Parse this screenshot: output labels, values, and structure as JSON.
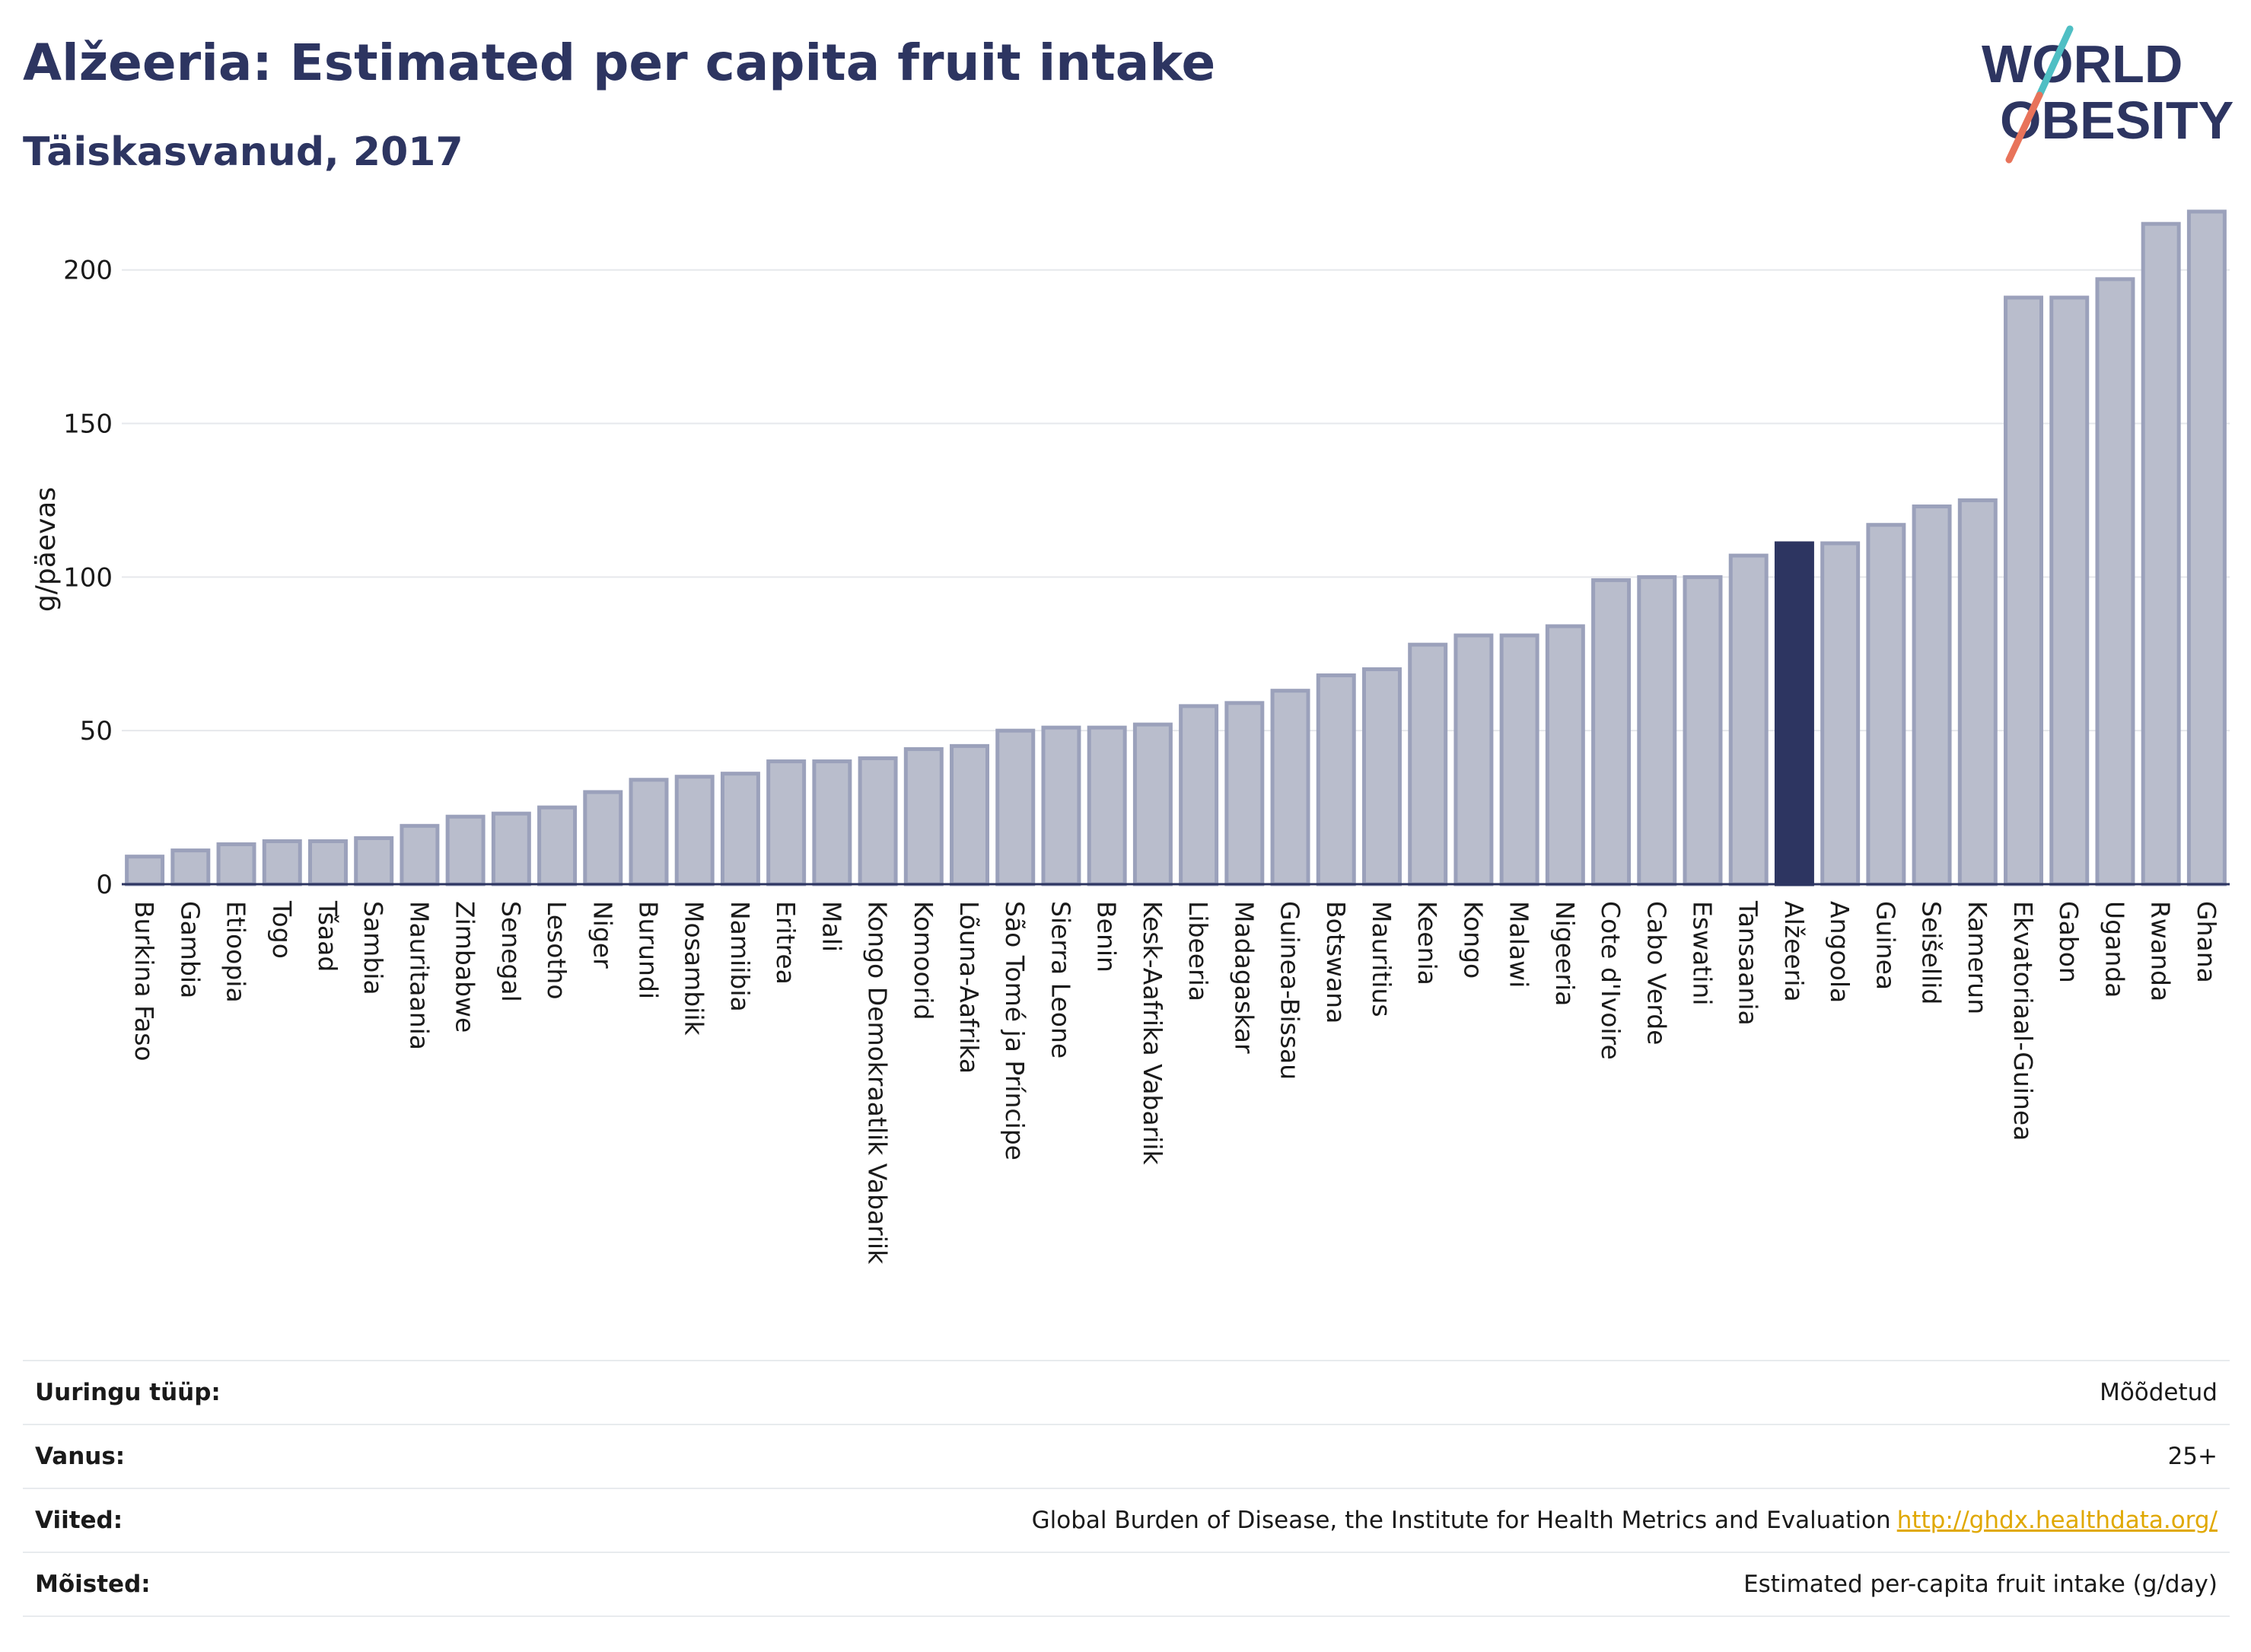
{
  "header": {
    "title": "Alžeeria: Estimated per capita fruit intake",
    "subtitle": "Täiskasvanud, 2017"
  },
  "logo": {
    "line1": "WORLD",
    "line2": "OBESITY"
  },
  "colors": {
    "bar": "#b9bdcc",
    "bar_outline": "#9ba1bb",
    "highlight": "#2d3561",
    "title": "#2d3561",
    "grid": "#e6e8ec",
    "link": "#e0a800",
    "logo_slash_top": "#4fbfc4",
    "logo_slash_bottom": "#e8735a"
  },
  "chart_data": {
    "type": "bar",
    "title": "Alžeeria: Estimated per capita fruit intake",
    "subtitle": "Täiskasvanud, 2017",
    "ylabel": "g/päevas",
    "xlabel": "",
    "ylim": [
      0,
      220
    ],
    "yticks": [
      0,
      50,
      100,
      150,
      200
    ],
    "grid": true,
    "highlight": "Alžeeria",
    "categories": [
      "Burkina Faso",
      "Gambia",
      "Etioopia",
      "Togo",
      "Tšaad",
      "Sambia",
      "Mauritaania",
      "Zimbabwe",
      "Senegal",
      "Lesotho",
      "Niger",
      "Burundi",
      "Mosambiik",
      "Namiibia",
      "Eritrea",
      "Mali",
      "Kongo Demokraatlik Vabariik",
      "Komoorid",
      "Lõuna-Aafrika",
      "São Tomé ja Príncipe",
      "Sierra Leone",
      "Benin",
      "Kesk-Aafrika Vabariik",
      "Libeeria",
      "Madagaskar",
      "Guinea-Bissau",
      "Botswana",
      "Mauritius",
      "Keenia",
      "Kongo",
      "Malawi",
      "Nigeeria",
      "Cote d'Ivoire",
      "Cabo Verde",
      "Eswatini",
      "Tansaania",
      "Alžeeria",
      "Angoola",
      "Guinea",
      "Seišellid",
      "Kamerun",
      "Ekvatoriaal-Guinea",
      "Gabon",
      "Uganda",
      "Rwanda",
      "Ghana"
    ],
    "values": [
      9,
      11,
      13,
      14,
      14,
      15,
      19,
      22,
      23,
      25,
      30,
      34,
      35,
      36,
      40,
      40,
      41,
      44,
      45,
      50,
      51,
      51,
      52,
      58,
      59,
      63,
      68,
      70,
      78,
      81,
      81,
      84,
      99,
      100,
      100,
      107,
      111,
      111,
      117,
      123,
      125,
      191,
      191,
      197,
      215,
      219
    ]
  },
  "meta": [
    {
      "label": "Uuringu tüüp:",
      "value": "Mõõdetud"
    },
    {
      "label": "Vanus:",
      "value": "25+"
    },
    {
      "label": "Viited:",
      "value": "Global Burden of Disease, the Institute for Health Metrics and Evaluation",
      "link": "http://ghdx.healthdata.org/"
    },
    {
      "label": "Mõisted:",
      "value": "Estimated per-capita fruit intake (g/day)"
    }
  ]
}
